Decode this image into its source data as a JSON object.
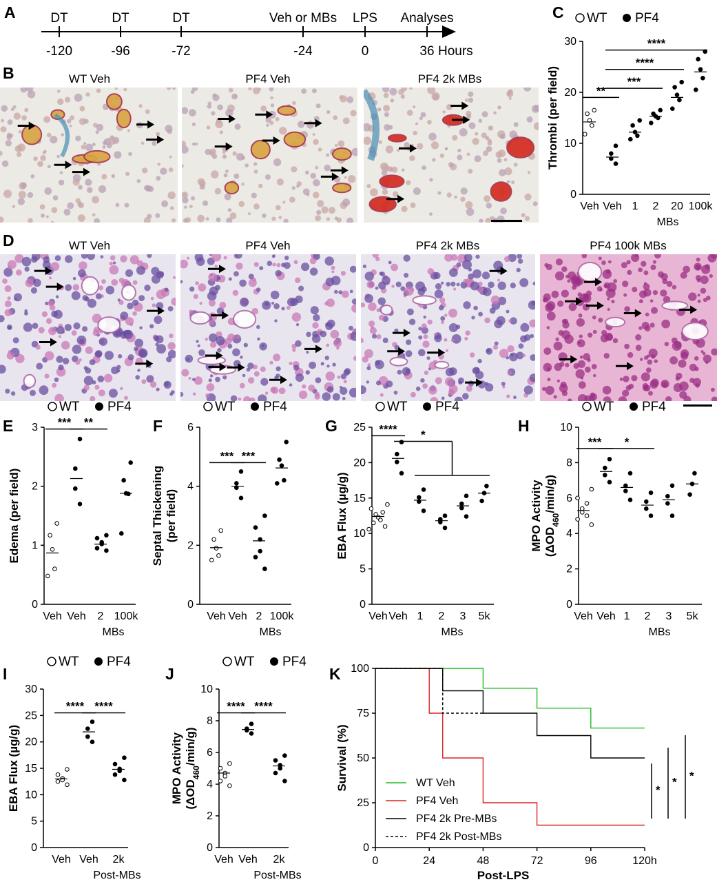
{
  "panels": {
    "A": "A",
    "B": "B",
    "C": "C",
    "D": "D",
    "E": "E",
    "F": "F",
    "G": "G",
    "H": "H",
    "I": "I",
    "J": "J",
    "K": "K"
  },
  "timeline": {
    "events": [
      {
        "label": "DT",
        "time": "-120"
      },
      {
        "label": "DT",
        "time": "-96"
      },
      {
        "label": "DT",
        "time": "-72"
      },
      {
        "label": "Veh or MBs",
        "time": "-24"
      },
      {
        "label": "LPS",
        "time": "0"
      },
      {
        "label": "Analyses",
        "time": "36"
      }
    ],
    "unit": "Hours"
  },
  "micrographs_B": [
    "WT Veh",
    "PF4 Veh",
    "PF4 2k MBs"
  ],
  "micrographs_D": [
    "WT Veh",
    "PF4 Veh",
    "PF4 2k MBs",
    "PF4 100k MBs"
  ],
  "legend": {
    "open": "WT",
    "filled": "PF4"
  },
  "chart_data": [
    {
      "id": "C",
      "type": "scatter",
      "ylabel": "Thrombi (per field)",
      "ylim": [
        0,
        30
      ],
      "yticks": [
        "0",
        "10",
        "20",
        "30"
      ],
      "categories": [
        "Veh",
        "Veh",
        "1",
        "2",
        "20",
        "100k"
      ],
      "group_label": "MBs",
      "means": [
        14.2,
        7.3,
        12.2,
        15.3,
        19.0,
        24.0
      ],
      "points": [
        {
          "g": 0,
          "wt": true,
          "v": [
            16.5,
            15.8,
            14.5,
            13.5,
            11.8
          ]
        },
        {
          "g": 1,
          "v": [
            9.5,
            8.0,
            7.0,
            6.0
          ]
        },
        {
          "g": 2,
          "v": [
            14.5,
            13.5,
            12.2,
            11.5,
            10.8
          ]
        },
        {
          "g": 3,
          "v": [
            16.5,
            15.8,
            15.3,
            15.0,
            14.0
          ]
        },
        {
          "g": 4,
          "v": [
            22.0,
            21.0,
            19.5,
            18.5,
            16.8
          ]
        },
        {
          "g": 5,
          "v": [
            28.0,
            26.5,
            24.5,
            22.8,
            20.5
          ]
        }
      ],
      "sig": [
        {
          "a": 0,
          "b": 1,
          "y": 19,
          "t": "**"
        },
        {
          "a": 1,
          "b": 3,
          "y": 20.8,
          "t": "***"
        },
        {
          "a": 1,
          "b": 4,
          "y": 24.5,
          "t": "****"
        },
        {
          "a": 1,
          "b": 5,
          "y": 28.3,
          "t": "****"
        }
      ]
    },
    {
      "id": "E",
      "type": "scatter",
      "ylabel": "Edema (per field)",
      "ylim": [
        0,
        3
      ],
      "yticks": [
        "0",
        "1",
        "2",
        "3"
      ],
      "categories": [
        "Veh",
        "Veh",
        "2",
        "100k"
      ],
      "group_label": "MBs",
      "means": [
        0.87,
        2.13,
        1.02,
        1.88
      ],
      "points": [
        {
          "g": 0,
          "wt": true,
          "v": [
            1.37,
            1.17,
            0.93,
            0.6,
            0.48
          ]
        },
        {
          "g": 1,
          "v": [
            2.8,
            2.3,
            1.96,
            1.7
          ]
        },
        {
          "g": 2,
          "v": [
            1.17,
            1.12,
            1.05,
            1.02,
            0.95,
            0.91
          ]
        },
        {
          "g": 3,
          "v": [
            2.4,
            2.1,
            1.88,
            1.87,
            1.2
          ]
        }
      ],
      "sig": [
        {
          "a": 0,
          "b": 1,
          "y": 2.97,
          "t": "***"
        },
        {
          "a": 1,
          "b": 2,
          "y": 2.97,
          "t": "**"
        }
      ]
    },
    {
      "id": "F",
      "type": "scatter",
      "ylabel": "Septal Thickening (per field)",
      "ylim": [
        0,
        6
      ],
      "yticks": [
        "0",
        "2",
        "4",
        "6"
      ],
      "categories": [
        "Veh",
        "Veh",
        "2",
        "100k"
      ],
      "group_label": "MBs",
      "means": [
        1.92,
        4.0,
        2.15,
        4.62
      ],
      "points": [
        {
          "g": 0,
          "wt": true,
          "v": [
            2.5,
            2.2,
            1.9,
            1.65,
            1.5
          ]
        },
        {
          "g": 1,
          "v": [
            4.5,
            4.1,
            3.95,
            3.6
          ]
        },
        {
          "g": 2,
          "v": [
            3.0,
            2.6,
            2.2,
            1.8,
            1.6,
            1.2
          ]
        },
        {
          "g": 3,
          "v": [
            5.5,
            4.9,
            4.7,
            4.2,
            4.1
          ]
        }
      ],
      "sig": [
        {
          "a": 0,
          "b": 1,
          "y": 4.8,
          "t": "***"
        },
        {
          "a": 1,
          "b": 2,
          "y": 4.8,
          "t": "***"
        }
      ]
    },
    {
      "id": "G",
      "type": "scatter",
      "ylabel": "EBA Flux (µg/g)",
      "ylim": [
        0,
        25
      ],
      "yticks": [
        "0",
        "5",
        "10",
        "15",
        "20",
        "25"
      ],
      "categories": [
        "Veh",
        "Veh",
        "1",
        "2",
        "3",
        "5k"
      ],
      "group_label": "MBs",
      "means": [
        12.4,
        20.6,
        14.7,
        11.8,
        13.9,
        15.7
      ],
      "points": [
        {
          "g": 0,
          "wt": true,
          "v": [
            14.1,
            13.5,
            13.0,
            12.7,
            12.3,
            11.9,
            11.5,
            11.0,
            10.6
          ]
        },
        {
          "g": 1,
          "v": [
            22.9,
            21.2,
            20.1,
            18.5
          ]
        },
        {
          "g": 2,
          "v": [
            16.2,
            15.1,
            14.5,
            13.2
          ]
        },
        {
          "g": 3,
          "v": [
            12.5,
            12.0,
            11.6,
            10.8
          ]
        },
        {
          "g": 4,
          "v": [
            15.3,
            14.2,
            13.6,
            12.4
          ]
        },
        {
          "g": 5,
          "v": [
            16.7,
            15.7,
            14.6
          ]
        }
      ],
      "sig": [
        {
          "a": 0,
          "b": 1,
          "y": 23.8,
          "t": "****"
        },
        {
          "bracket": true,
          "a": 1,
          "from": 2,
          "to": 5,
          "yTop": 23.0,
          "yLow": 18.2,
          "t": "*"
        }
      ]
    },
    {
      "id": "H",
      "type": "scatter",
      "ylabel": "MPO Activity (ΔOD460/min/g)",
      "ylim": [
        0,
        10
      ],
      "yticks": [
        "0",
        "2",
        "4",
        "6",
        "8",
        "10"
      ],
      "categories": [
        "Veh",
        "Veh",
        "1",
        "2",
        "3",
        "5k"
      ],
      "group_label": "MBs",
      "means": [
        5.3,
        7.5,
        6.6,
        5.6,
        5.9,
        6.8
      ],
      "points": [
        {
          "g": 0,
          "wt": true,
          "v": [
            6.5,
            6.0,
            5.7,
            5.4,
            5.2,
            5.0,
            4.8,
            4.5
          ]
        },
        {
          "g": 1,
          "v": [
            8.2,
            7.7,
            7.3,
            6.9
          ]
        },
        {
          "g": 2,
          "v": [
            7.4,
            6.7,
            6.4,
            5.9
          ]
        },
        {
          "g": 3,
          "v": [
            6.3,
            5.8,
            5.4,
            5.0
          ]
        },
        {
          "g": 4,
          "v": [
            6.7,
            6.1,
            5.7,
            5.0
          ]
        },
        {
          "g": 5,
          "v": [
            7.4,
            6.8,
            6.2
          ]
        }
      ],
      "sig": [
        {
          "a": 0,
          "b": 1,
          "y": 8.8,
          "t": "***"
        },
        {
          "a": 1,
          "b": 3,
          "y": 8.8,
          "t": "*"
        }
      ]
    },
    {
      "id": "I",
      "type": "scatter",
      "ylabel": "EBA Flux (µg/g)",
      "ylim": [
        0,
        30
      ],
      "yticks": [
        "0",
        "5",
        "10",
        "15",
        "20",
        "25",
        "30"
      ],
      "categories": [
        "Veh",
        "Veh",
        "2k"
      ],
      "group_label": "Post-MBs",
      "means": [
        13.0,
        21.9,
        14.8
      ],
      "points": [
        {
          "g": 0,
          "wt": true,
          "v": [
            14.8,
            13.8,
            13.1,
            12.8,
            12.5,
            11.9
          ]
        },
        {
          "g": 1,
          "v": [
            23.8,
            22.5,
            21.0,
            20.0
          ]
        },
        {
          "g": 2,
          "v": [
            17.0,
            15.8,
            14.9,
            14.5,
            13.8,
            12.8
          ]
        }
      ],
      "sig": [
        {
          "a": 0,
          "b": 1,
          "y": 25.5,
          "t": "****"
        },
        {
          "a": 1,
          "b": 2,
          "y": 25.5,
          "t": "****"
        }
      ]
    },
    {
      "id": "J",
      "type": "scatter",
      "ylabel": "MPO Activity (ΔOD460/min/g)",
      "ylim": [
        0,
        10
      ],
      "yticks": [
        "0",
        "2",
        "4",
        "6",
        "8",
        "10"
      ],
      "categories": [
        "Veh",
        "Veh",
        "2k"
      ],
      "group_label": "Post-MBs",
      "means": [
        4.7,
        7.45,
        5.15
      ],
      "points": [
        {
          "g": 0,
          "wt": true,
          "v": [
            5.3,
            5.0,
            4.7,
            4.5,
            4.2,
            3.9
          ]
        },
        {
          "g": 1,
          "v": [
            7.8,
            7.5,
            7.4,
            7.2
          ]
        },
        {
          "g": 2,
          "v": [
            5.8,
            5.5,
            5.2,
            5.0,
            4.7,
            4.2
          ]
        }
      ],
      "sig": [
        {
          "a": 0,
          "b": 1,
          "y": 8.5,
          "t": "****"
        },
        {
          "a": 1,
          "b": 2,
          "y": 8.5,
          "t": "****"
        }
      ]
    },
    {
      "id": "K",
      "type": "line",
      "ylabel": "Survival (%)",
      "xlabel": "Post-LPS",
      "ylim": [
        0,
        100
      ],
      "xlim": [
        0,
        120
      ],
      "yticks": [
        "0",
        "25",
        "50",
        "75",
        "100"
      ],
      "xticks": [
        "0",
        "24",
        "48",
        "72",
        "96",
        "120h"
      ],
      "series": [
        {
          "name": "WT Veh",
          "color": "#22bb22",
          "dash": false,
          "steps": [
            [
              0,
              100
            ],
            [
              48,
              88.9
            ],
            [
              72,
              77.8
            ],
            [
              96,
              66.7
            ],
            [
              120,
              66.7
            ]
          ]
        },
        {
          "name": "PF4 Veh",
          "color": "#dd2222",
          "dash": false,
          "steps": [
            [
              0,
              100
            ],
            [
              24,
              75
            ],
            [
              30,
              50
            ],
            [
              48,
              25
            ],
            [
              72,
              12.5
            ],
            [
              120,
              12.5
            ]
          ]
        },
        {
          "name": "PF4 2k Pre-MBs",
          "color": "#000000",
          "dash": false,
          "steps": [
            [
              0,
              100
            ],
            [
              30,
              87.5
            ],
            [
              48,
              75
            ],
            [
              72,
              62.5
            ],
            [
              96,
              50
            ],
            [
              120,
              50
            ]
          ]
        },
        {
          "name": "PF4 2k Post-MBs",
          "color": "#000000",
          "dash": true,
          "steps": [
            [
              0,
              100
            ],
            [
              30,
              75
            ],
            [
              48,
              75
            ]
          ]
        }
      ],
      "sig_marks": [
        "*",
        "*",
        "*"
      ]
    }
  ]
}
